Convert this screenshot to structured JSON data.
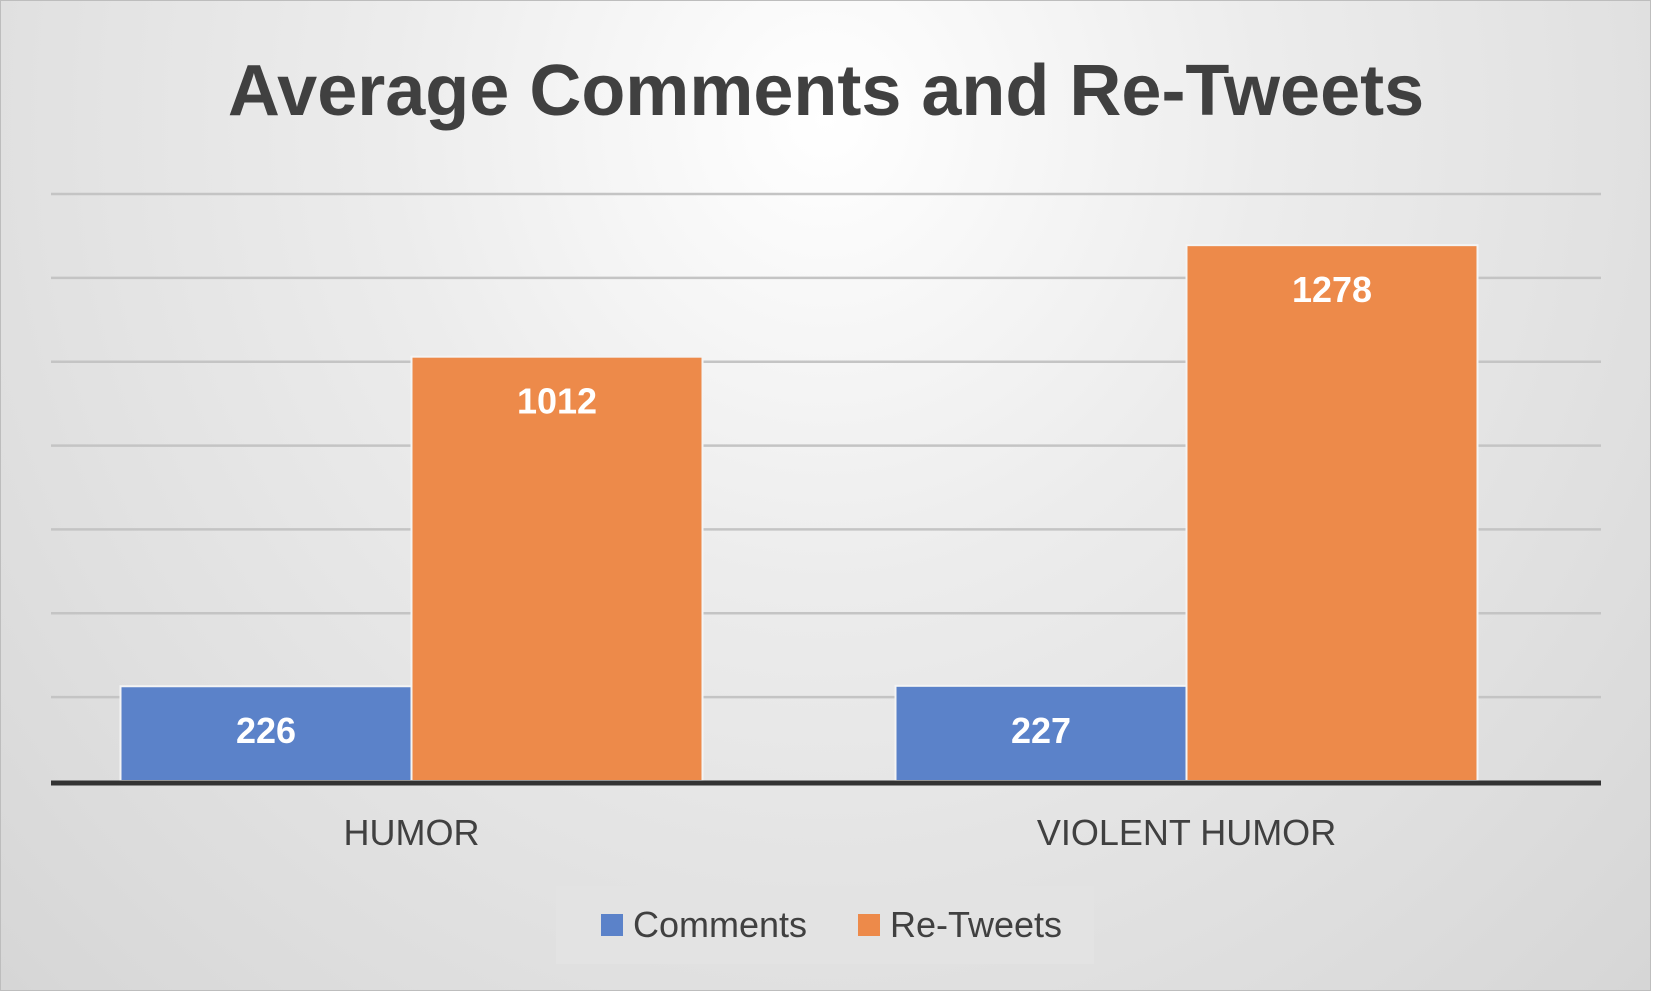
{
  "chart_data": {
    "type": "bar",
    "title": "Average Comments and Re-Tweets",
    "categories": [
      "HUMOR",
      "VIOLENT HUMOR"
    ],
    "series": [
      {
        "name": "Comments",
        "values": [
          226,
          227
        ],
        "color": "#5b82c9"
      },
      {
        "name": "Re-Tweets",
        "values": [
          1012,
          1278
        ],
        "color": "#ed8a4a"
      }
    ],
    "ylim": [
      0,
      1400
    ],
    "grid": true,
    "legend": "bottom",
    "xlabel": "",
    "ylabel": ""
  }
}
